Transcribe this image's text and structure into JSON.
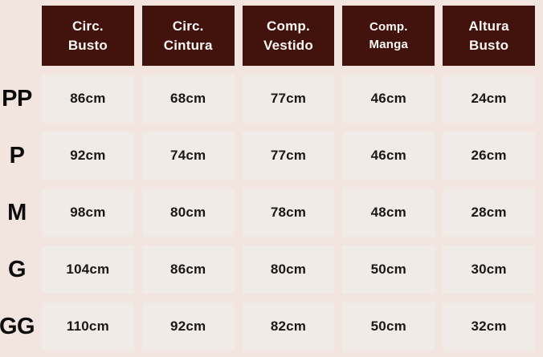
{
  "colors": {
    "background": "#f2e4de",
    "cell_background": "#f1ebe7",
    "header_background": "#42120c",
    "header_text": "#fbf8f6",
    "value_text": "#1a1817"
  },
  "table": {
    "headers": [
      {
        "line1": "Circ.",
        "line2": "Busto"
      },
      {
        "line1": "Circ.",
        "line2": "Cintura"
      },
      {
        "line1": "Comp.",
        "line2": "Vestido"
      },
      {
        "line1": "Comp.",
        "line2": "Manga"
      },
      {
        "line1": "Altura",
        "line2": "Busto"
      }
    ],
    "rows": [
      {
        "label": "PP",
        "values": [
          "86cm",
          "68cm",
          "77cm",
          "46cm",
          "24cm"
        ]
      },
      {
        "label": "P",
        "values": [
          "92cm",
          "74cm",
          "77cm",
          "46cm",
          "26cm"
        ]
      },
      {
        "label": "M",
        "values": [
          "98cm",
          "80cm",
          "78cm",
          "48cm",
          "28cm"
        ]
      },
      {
        "label": "G",
        "values": [
          "104cm",
          "86cm",
          "80cm",
          "50cm",
          "30cm"
        ]
      },
      {
        "label": "GG",
        "values": [
          "110cm",
          "92cm",
          "82cm",
          "50cm",
          "32cm"
        ]
      }
    ]
  },
  "chart_data": {
    "type": "table",
    "title": "",
    "columns": [
      "Circ. Busto",
      "Circ. Cintura",
      "Comp. Vestido",
      "Comp. Manga",
      "Altura Busto"
    ],
    "row_labels": [
      "PP",
      "P",
      "M",
      "G",
      "GG"
    ],
    "rows": [
      [
        86,
        68,
        77,
        46,
        24
      ],
      [
        92,
        74,
        77,
        46,
        26
      ],
      [
        98,
        80,
        78,
        48,
        28
      ],
      [
        104,
        86,
        80,
        50,
        30
      ],
      [
        110,
        92,
        82,
        50,
        32
      ]
    ],
    "unit": "cm"
  }
}
